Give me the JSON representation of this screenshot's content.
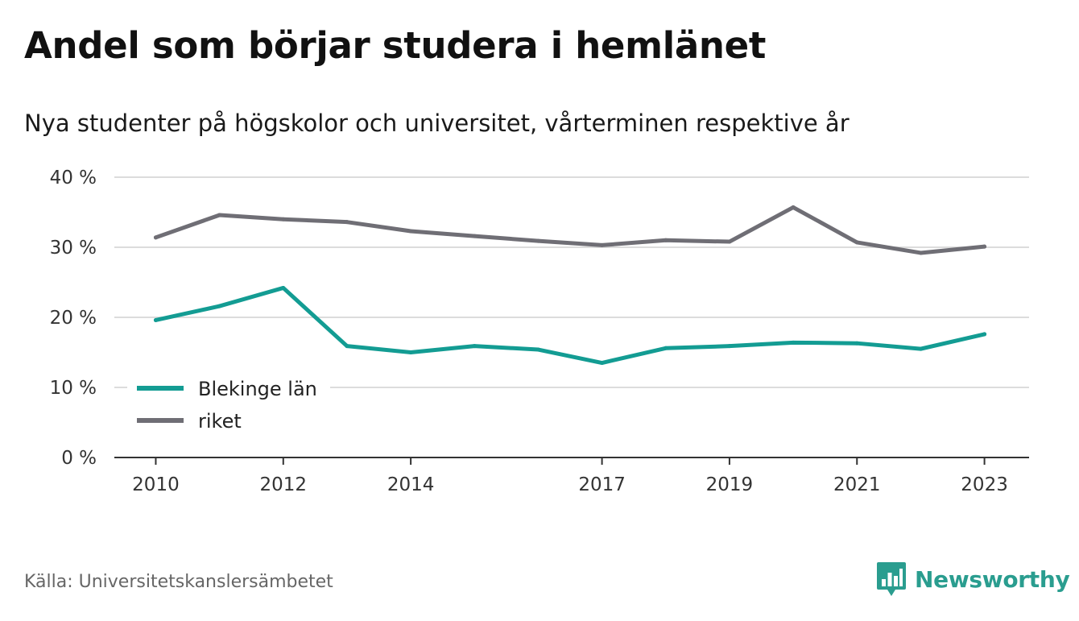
{
  "header": {
    "title": "Andel som börjar studera i hemlänet",
    "subtitle": "Nya studenter på högskolor och universitet, vårterminen respektive år"
  },
  "footer": {
    "source": "Källa: Universitetskanslersämbetet",
    "brand": "Newsworthy"
  },
  "colors": {
    "blekinge": "#139c93",
    "riket": "#6f6e75",
    "grid": "#dcdcdc",
    "axis": "#333333",
    "brand": "#2a9d8f"
  },
  "chart_data": {
    "type": "line",
    "title": "Andel som börjar studera i hemlänet",
    "subtitle": "Nya studenter på högskolor och universitet, vårterminen respektive år",
    "x": [
      2010,
      2011,
      2012,
      2013,
      2014,
      2015,
      2016,
      2017,
      2018,
      2019,
      2020,
      2021,
      2022,
      2023
    ],
    "x_ticks": [
      2010,
      2012,
      2014,
      2017,
      2019,
      2021,
      2023
    ],
    "y_ticks": [
      0,
      10,
      20,
      30,
      40
    ],
    "y_tick_labels": [
      "0 %",
      "10 %",
      "20 %",
      "30 %",
      "40 %"
    ],
    "ylim": [
      0,
      40
    ],
    "xlim": [
      2009.35,
      2023.7
    ],
    "grid": true,
    "legend_position": "bottom-left",
    "series": [
      {
        "name": "Blekinge län",
        "color": "#139c93",
        "values": [
          19.6,
          21.6,
          24.2,
          15.9,
          15.0,
          15.9,
          15.4,
          13.5,
          15.6,
          15.9,
          16.4,
          16.3,
          15.5,
          17.6
        ]
      },
      {
        "name": "riket",
        "color": "#6f6e75",
        "values": [
          31.4,
          34.6,
          34.0,
          33.6,
          32.3,
          31.6,
          30.9,
          30.3,
          31.0,
          30.8,
          35.7,
          30.7,
          29.2,
          30.1
        ]
      }
    ]
  }
}
